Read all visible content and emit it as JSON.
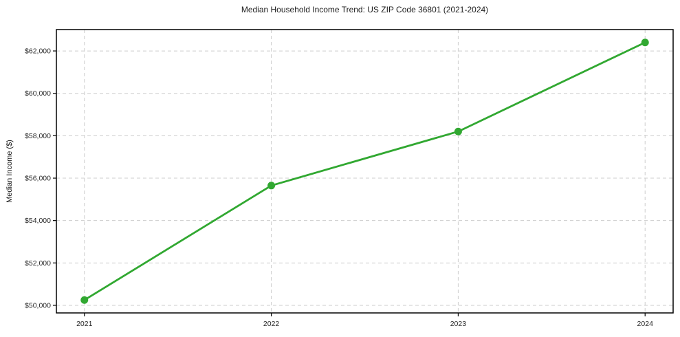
{
  "chart_data": {
    "type": "line",
    "title": "Median Household Income Trend: US ZIP Code 36801 (2021-2024)",
    "xlabel": "",
    "ylabel": "Median Income ($)",
    "categories": [
      "2021",
      "2022",
      "2023",
      "2024"
    ],
    "series": [
      {
        "name": "Median Household Income",
        "values": [
          50250,
          55650,
          58200,
          62400
        ]
      }
    ],
    "y_ticks": [
      50000,
      52000,
      54000,
      56000,
      58000,
      60000,
      62000
    ],
    "y_tick_labels": [
      "$50,000",
      "$52,000",
      "$54,000",
      "$56,000",
      "$58,000",
      "$60,000",
      "$62,000"
    ],
    "ylim": [
      49642,
      63008
    ],
    "x_margin_frac": 0.05,
    "grid": true,
    "grid_style": "dashed",
    "legend_position": "none",
    "line_color": "#31a831",
    "marker_color": "#31a831",
    "grid_color": "#cccccc",
    "spine_color": "#000000",
    "text_color": "#262626"
  }
}
